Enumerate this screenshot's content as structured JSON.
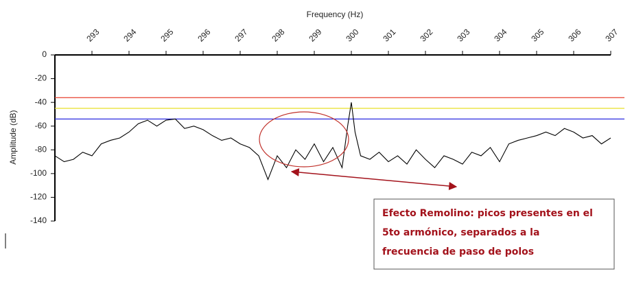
{
  "chart_data": {
    "type": "line",
    "x_label": "Frequency (Hz)",
    "y_label": "Amplitude (dB)",
    "xlim": [
      292,
      307
    ],
    "xticks": [
      293,
      294,
      295,
      296,
      297,
      298,
      299,
      300,
      301,
      302,
      303,
      304,
      305,
      306,
      307
    ],
    "ylim": [
      -140,
      0
    ],
    "yticks": [
      0,
      -20,
      -40,
      -60,
      -80,
      -100,
      -120,
      -140
    ],
    "x": [
      292,
      292.25,
      292.5,
      292.75,
      293,
      293.25,
      293.5,
      293.75,
      294,
      294.25,
      294.5,
      294.75,
      295,
      295.25,
      295.5,
      295.75,
      296,
      296.25,
      296.5,
      296.75,
      297,
      297.25,
      297.5,
      297.75,
      298,
      298.25,
      298.5,
      298.75,
      299,
      299.25,
      299.5,
      299.75,
      299.9,
      300,
      300.1,
      300.25,
      300.5,
      300.75,
      301,
      301.25,
      301.5,
      301.75,
      302,
      302.25,
      302.5,
      302.75,
      303,
      303.25,
      303.5,
      303.75,
      304,
      304.25,
      304.5,
      304.75,
      305,
      305.25,
      305.5,
      305.75,
      306,
      306.25,
      306.5,
      306.75,
      307
    ],
    "series": [
      {
        "color": "#000000",
        "values": [
          -85,
          -90,
          -88,
          -82,
          -85,
          -75,
          -72,
          -70,
          -65,
          -58,
          -55,
          -60,
          -55,
          -54,
          -62,
          -60,
          -63,
          -68,
          -72,
          -70,
          -75,
          -78,
          -85,
          -105,
          -85,
          -95,
          -80,
          -88,
          -75,
          -90,
          -78,
          -95,
          -60,
          -40,
          -65,
          -85,
          -88,
          -82,
          -90,
          -85,
          -92,
          -80,
          -88,
          -95,
          -85,
          -88,
          -92,
          -82,
          -85,
          -78,
          -90,
          -75,
          -72,
          -70,
          -68,
          -65,
          -68,
          -62,
          -65,
          -70,
          -68,
          -75,
          -70
        ]
      }
    ],
    "reference_lines": [
      {
        "value": -36,
        "color": "#e8402f"
      },
      {
        "value": -45,
        "color": "#e8e02a"
      },
      {
        "value": -54,
        "color": "#2a2ae0"
      }
    ],
    "annotation_lines": [
      "Efecto Remolino: picos presentes en el",
      "5to armónico, separados a la",
      "frecuencia de paso de polos"
    ]
  }
}
